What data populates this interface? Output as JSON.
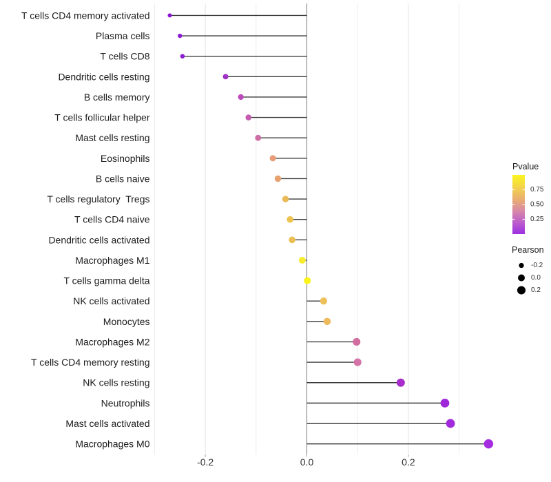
{
  "chart_data": {
    "type": "lollipop",
    "title": "",
    "xlabel": "",
    "ylabel": "",
    "xlim": [
      -0.295,
      0.396
    ],
    "grid": "vertical-only",
    "legend_position": "right",
    "x_major_ticks": [
      {
        "value": -0.2,
        "label": "-0.2"
      },
      {
        "value": 0.0,
        "label": "0.0"
      },
      {
        "value": 0.2,
        "label": "0.2"
      }
    ],
    "x_minor_gridlines": [
      -0.3,
      -0.1,
      0.1,
      0.3
    ],
    "points": [
      {
        "label": "T cells CD4 memory activated",
        "pearson": -0.27,
        "pvalue_est": 0.05,
        "color": "#8a14d4"
      },
      {
        "label": "Plasma cells",
        "pearson": -0.25,
        "pvalue_est": 0.06,
        "color": "#8d1cd4"
      },
      {
        "label": "T cells CD8",
        "pearson": -0.245,
        "pvalue_est": 0.06,
        "color": "#8d1cd4"
      },
      {
        "label": "Dendritic cells resting",
        "pearson": -0.16,
        "pvalue_est": 0.16,
        "color": "#a032c4"
      },
      {
        "label": "B cells memory",
        "pearson": -0.13,
        "pvalue_est": 0.26,
        "color": "#bc4cba"
      },
      {
        "label": "T cells follicular helper",
        "pearson": -0.115,
        "pvalue_est": 0.3,
        "color": "#c55bb0"
      },
      {
        "label": "Mast cells resting",
        "pearson": -0.096,
        "pvalue_est": 0.36,
        "color": "#cd6da4"
      },
      {
        "label": "Eosinophils",
        "pearson": -0.067,
        "pvalue_est": 0.55,
        "color": "#e89d78"
      },
      {
        "label": "B cells naive",
        "pearson": -0.057,
        "pvalue_est": 0.56,
        "color": "#e7a06e"
      },
      {
        "label": "T cells regulatory  Tregs",
        "pearson": -0.042,
        "pvalue_est": 0.66,
        "color": "#eaba58"
      },
      {
        "label": "T cells CD4 naive",
        "pearson": -0.033,
        "pvalue_est": 0.71,
        "color": "#edc350"
      },
      {
        "label": "Dendritic cells activated",
        "pearson": -0.029,
        "pvalue_est": 0.69,
        "color": "#ecbf54"
      },
      {
        "label": "Macrophages M1",
        "pearson": -0.009,
        "pvalue_est": 0.93,
        "color": "#f7ec2e"
      },
      {
        "label": "T cells gamma delta",
        "pearson": 0.001,
        "pvalue_est": 0.97,
        "color": "#fcf318"
      },
      {
        "label": "NK cells activated",
        "pearson": 0.033,
        "pvalue_est": 0.7,
        "color": "#edc05a"
      },
      {
        "label": "Monocytes",
        "pearson": 0.04,
        "pvalue_est": 0.67,
        "color": "#edbb5e"
      },
      {
        "label": "Macrophages M2",
        "pearson": 0.098,
        "pvalue_est": 0.37,
        "color": "#d26da0"
      },
      {
        "label": "T cells CD4 memory resting",
        "pearson": 0.1,
        "pvalue_est": 0.39,
        "color": "#d473a8"
      },
      {
        "label": "NK cells resting",
        "pearson": 0.185,
        "pvalue_est": 0.11,
        "color": "#a82ecb"
      },
      {
        "label": "Neutrophils",
        "pearson": 0.272,
        "pvalue_est": 0.05,
        "color": "#9f28d8"
      },
      {
        "label": "Mast cells activated",
        "pearson": 0.283,
        "pvalue_est": 0.04,
        "color": "#a12add"
      },
      {
        "label": "Macrophages M0",
        "pearson": 0.358,
        "pvalue_est": 0.02,
        "color": "#a52ce1"
      }
    ],
    "color_legend": {
      "title": "Pvalue",
      "ticks": [
        {
          "value": 0.75,
          "label": "0.75"
        },
        {
          "value": 0.5,
          "label": "0.50"
        },
        {
          "value": 0.25,
          "label": "0.25"
        }
      ],
      "gradient_stops_bottom_to_top": [
        "#9c2fe3",
        "#bc5ecc",
        "#d98aa6",
        "#eab06e",
        "#f3d44a",
        "#fbf51d"
      ]
    },
    "size_legend": {
      "title": "Pearson",
      "entries": [
        {
          "value": -0.2,
          "label": "-0.2"
        },
        {
          "value": 0.0,
          "label": "0.0"
        },
        {
          "value": 0.2,
          "label": "0.2"
        }
      ]
    },
    "colors": {
      "stem": "#3c3c3c",
      "zero_line": "#858585",
      "grid_major": "#e3e3e3",
      "grid_minor": "#ececec",
      "axis_text": "#303030",
      "label_text": "#1b1b1b",
      "legend_text": "#2b2b2b",
      "legend_dot": "#000000"
    }
  }
}
